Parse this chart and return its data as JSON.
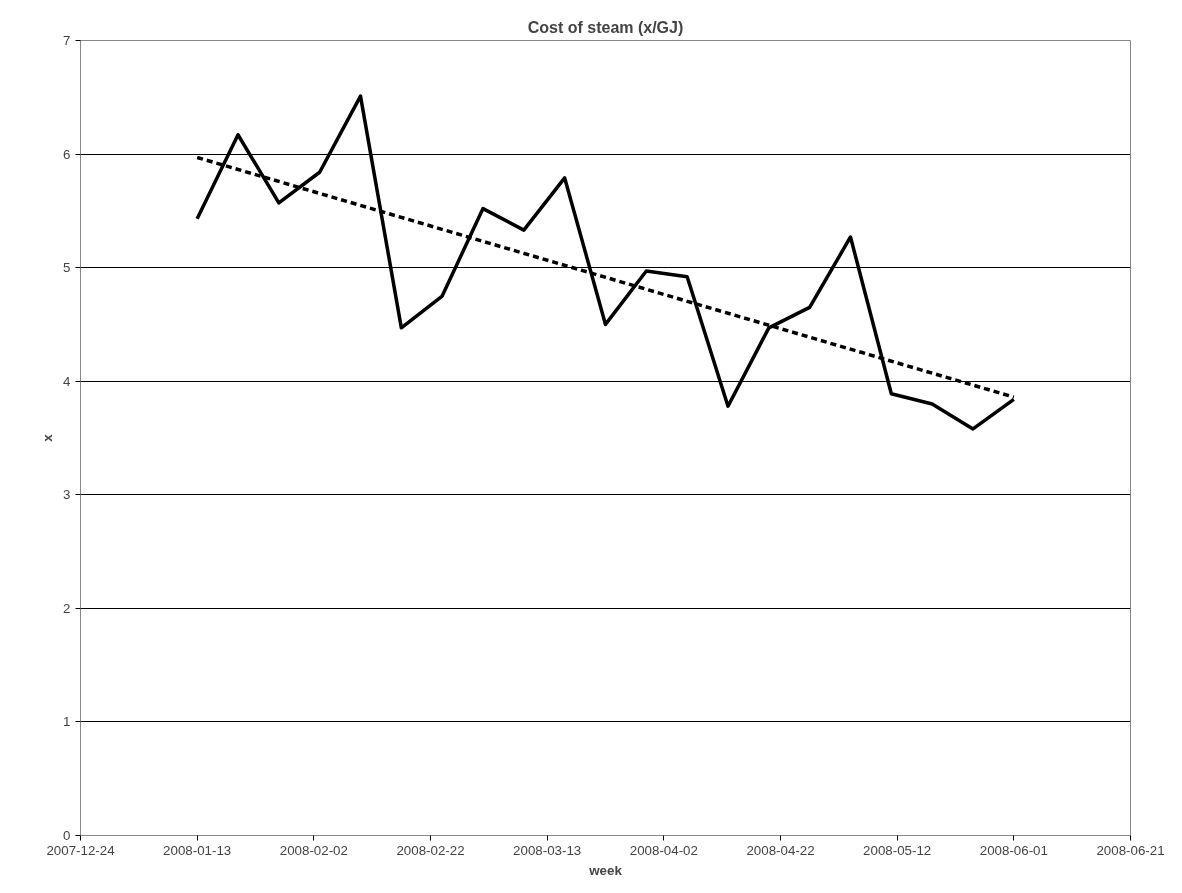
{
  "chart_data": {
    "type": "line",
    "title": "Cost of steam (x/GJ)",
    "xlabel": "week",
    "ylabel": "x",
    "x": [
      "2008-01-13",
      "2008-01-20",
      "2008-01-27",
      "2008-02-03",
      "2008-02-10",
      "2008-02-17",
      "2008-02-24",
      "2008-03-02",
      "2008-03-09",
      "2008-03-16",
      "2008-03-23",
      "2008-03-30",
      "2008-04-06",
      "2008-04-13",
      "2008-04-20",
      "2008-04-27",
      "2008-05-04",
      "2008-05-11",
      "2008-05-18",
      "2008-05-25",
      "2008-06-01"
    ],
    "series": [
      {
        "color": "#000000",
        "line_style": "solid",
        "values": [
          5.43,
          6.17,
          5.57,
          5.84,
          6.51,
          4.47,
          4.75,
          5.52,
          5.33,
          5.79,
          4.5,
          4.97,
          4.92,
          3.78,
          4.47,
          4.65,
          5.27,
          3.89,
          3.8,
          3.58,
          3.84
        ]
      },
      {
        "type": "line",
        "color": "#000000",
        "line_style": "dashed",
        "x": [
          "2008-01-13",
          "2008-06-01"
        ],
        "values": [
          5.97,
          3.86
        ]
      }
    ],
    "xlim": [
      "2007-12-24",
      "2008-06-21"
    ],
    "xticks": [
      "2007-12-24",
      "2008-01-13",
      "2008-02-02",
      "2008-02-22",
      "2008-03-13",
      "2008-04-02",
      "2008-04-22",
      "2008-05-12",
      "2008-06-01",
      "2008-06-21"
    ],
    "ylim": [
      0,
      7
    ],
    "yticks": [
      0,
      1,
      2,
      3,
      4,
      5,
      6,
      7
    ],
    "grid": "y",
    "marker": "none"
  }
}
